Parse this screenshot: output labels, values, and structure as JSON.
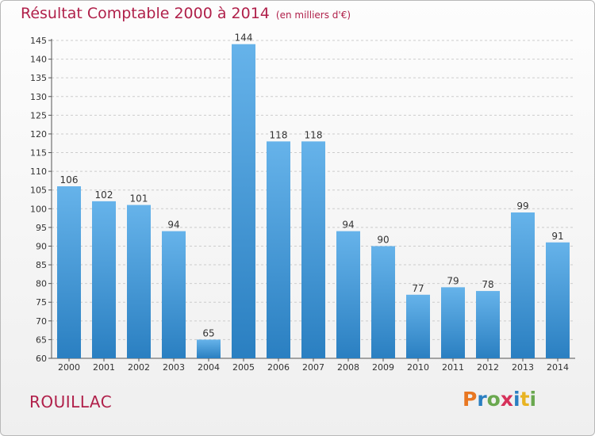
{
  "title": "Résultat Comptable 2000 à 2014",
  "unit": "(en milliers d'€)",
  "town": "ROUILLAC",
  "logo": {
    "text": "Proxiti",
    "colors": [
      "#e87722",
      "#2a7fc1",
      "#6aa84f",
      "#d6315a",
      "#2a7fc1",
      "#e8b322",
      "#6aa84f"
    ]
  },
  "colors": {
    "bar_light": "#66b3ea",
    "bar_dark": "#2a7fc1",
    "title": "#b0204a",
    "grid": "#cccccc"
  },
  "chart_data": {
    "type": "bar",
    "title": "Résultat Comptable 2000 à 2014",
    "subtitle": "(en milliers d'€)",
    "xlabel": "",
    "ylabel": "",
    "ylim": [
      60,
      145
    ],
    "yticks": [
      60,
      65,
      70,
      75,
      80,
      85,
      90,
      95,
      100,
      105,
      110,
      115,
      120,
      125,
      130,
      135,
      140,
      145
    ],
    "categories": [
      "2000",
      "2001",
      "2002",
      "2003",
      "2004",
      "2005",
      "2006",
      "2007",
      "2008",
      "2009",
      "2010",
      "2011",
      "2012",
      "2013",
      "2014"
    ],
    "values": [
      106,
      102,
      101,
      94,
      65,
      144,
      118,
      118,
      94,
      90,
      77,
      79,
      78,
      99,
      91
    ],
    "grid": true,
    "legend": "none"
  }
}
